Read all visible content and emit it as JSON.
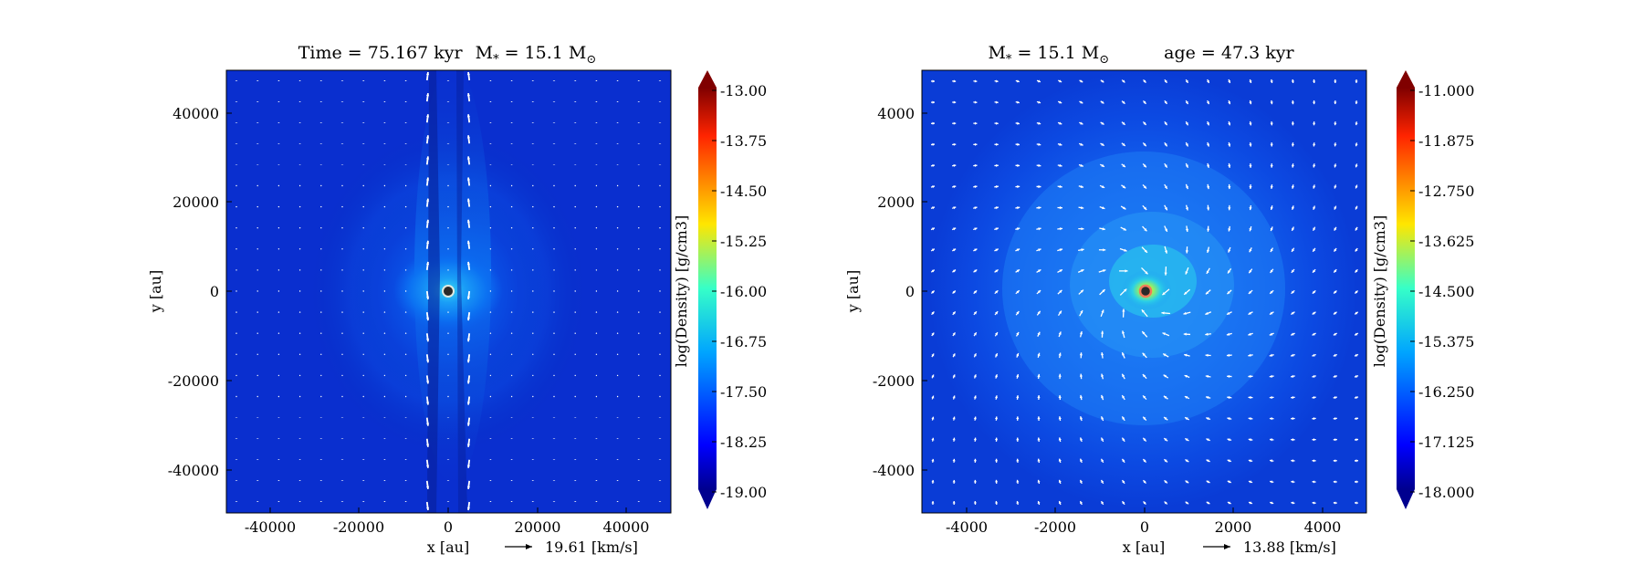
{
  "figure": {
    "panels": [
      {
        "title_left": "Time = 75.167 kyr",
        "title_right_prefix": "M",
        "title_right_sub": "*",
        "title_right_mid": " = 15.1 M",
        "title_right_sun": "⊙",
        "xlabel": "x [au]",
        "ylabel": "y [au]",
        "xticks": [
          "-40000",
          "-20000",
          "0",
          "20000",
          "40000"
        ],
        "yticks": [
          "40000",
          "20000",
          "0",
          "-20000",
          "-40000"
        ],
        "velocity_key": "19.61 [km/s]",
        "colorbar_label": "log(Density) [g/cm3]",
        "colorbar_ticks": [
          "-13.00",
          "-13.75",
          "-14.50",
          "-15.25",
          "-16.00",
          "-16.75",
          "-17.50",
          "-18.25",
          "-19.00"
        ]
      },
      {
        "title_left_prefix": "M",
        "title_left_sub": "*",
        "title_left_mid": " = 15.1 M",
        "title_left_sun": "⊙",
        "title_right": "age = 47.3 kyr",
        "xlabel": "x [au]",
        "ylabel": "y [au]",
        "xticks": [
          "-4000",
          "-2000",
          "0",
          "2000",
          "4000"
        ],
        "yticks": [
          "4000",
          "2000",
          "0",
          "-2000",
          "-4000"
        ],
        "velocity_key": "13.88 [km/s]",
        "colorbar_label": "log(Density) [g/cm3]",
        "colorbar_ticks": [
          "-11.000",
          "-11.875",
          "-12.750",
          "-13.625",
          "-14.500",
          "-15.375",
          "-16.250",
          "-17.125",
          "-18.000"
        ]
      }
    ]
  },
  "chart_data": [
    {
      "type": "heatmap",
      "title": "Time = 75.167 kyr M* = 15.1 M⊙",
      "xlabel": "x [au]",
      "ylabel": "y [au]",
      "xlim": [
        -50000,
        50000
      ],
      "ylim": [
        -50000,
        50000
      ],
      "colorbar": {
        "label": "log(Density) [g/cm3]",
        "range": [
          -19.0,
          -13.0
        ],
        "colormap": "jet"
      },
      "velocity_key_kms": 19.61,
      "star": {
        "x": 0,
        "y": 0
      },
      "grid": false
    },
    {
      "type": "heatmap",
      "title": "M* = 15.1 M⊙ age = 47.3 kyr",
      "xlabel": "x [au]",
      "ylabel": "y [au]",
      "xlim": [
        -5000,
        5000
      ],
      "ylim": [
        -5000,
        5000
      ],
      "colorbar": {
        "label": "log(Density) [g/cm3]",
        "range": [
          -18.0,
          -11.0
        ],
        "colormap": "jet"
      },
      "velocity_key_kms": 13.88,
      "star": {
        "x": 0,
        "y": 0
      },
      "grid": false
    }
  ]
}
